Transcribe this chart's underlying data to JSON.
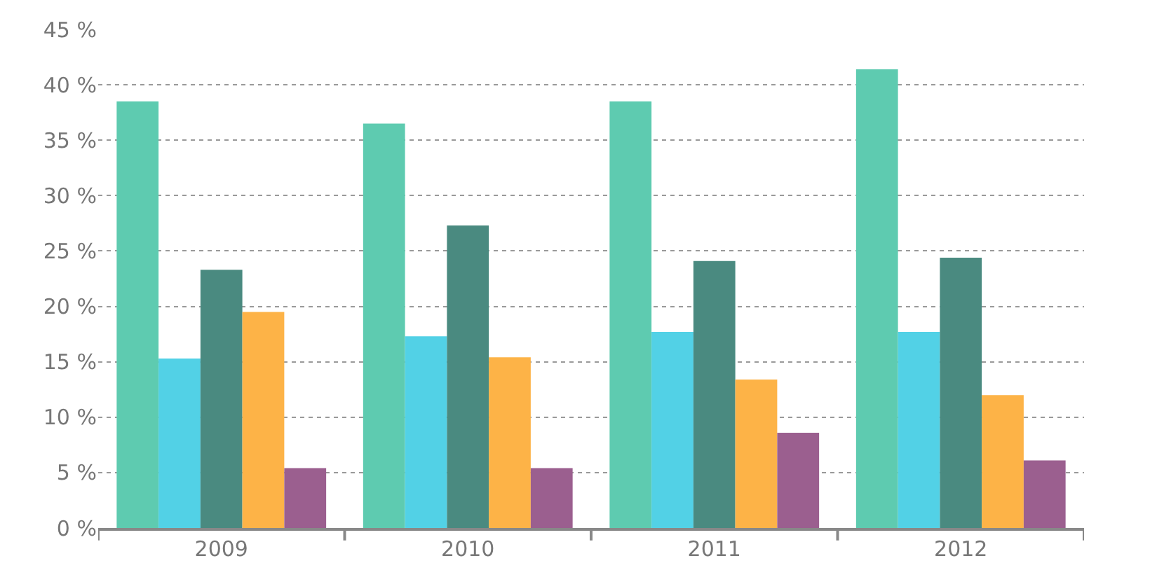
{
  "chart_data": {
    "type": "bar",
    "categories": [
      "2009",
      "2010",
      "2011",
      "2012"
    ],
    "series": [
      {
        "color": "#5ecbb0",
        "values": [
          38.5,
          36.5,
          38.5,
          41.4
        ]
      },
      {
        "color": "#52d1e6",
        "values": [
          15.3,
          17.3,
          17.7,
          17.7
        ]
      },
      {
        "color": "#4a8a80",
        "values": [
          23.3,
          27.3,
          24.1,
          24.4
        ]
      },
      {
        "color": "#fdb347",
        "values": [
          19.5,
          15.4,
          13.4,
          12.0
        ]
      },
      {
        "color": "#9b5f8f",
        "values": [
          5.4,
          5.4,
          8.6,
          6.1
        ]
      }
    ],
    "ylim": [
      0,
      45
    ],
    "yticks": [
      {
        "value": 0,
        "label": "0 %"
      },
      {
        "value": 5,
        "label": "5 %"
      },
      {
        "value": 10,
        "label": "10 %"
      },
      {
        "value": 15,
        "label": "15 %"
      },
      {
        "value": 20,
        "label": "20 %"
      },
      {
        "value": 25,
        "label": "25 %"
      },
      {
        "value": 30,
        "label": "30 %"
      },
      {
        "value": 35,
        "label": "35 %"
      },
      {
        "value": 40,
        "label": "40 %"
      },
      {
        "value": 45,
        "label": "45 %"
      }
    ],
    "grid": "y"
  }
}
